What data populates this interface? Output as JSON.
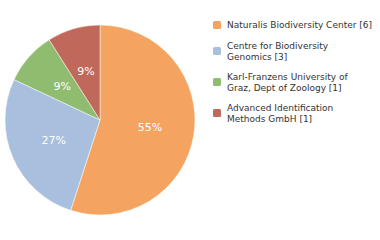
{
  "chart_data": {
    "type": "pie",
    "categories": [
      "Naturalis Biodiversity Center [6]",
      "Centre for Biodiversity\nGenomics [3]",
      "Karl-Franzens University of\nGraz, Dept of Zoology [1]",
      "Advanced Identification\nMethods GmbH [1]"
    ],
    "values": [
      55,
      27,
      9,
      9
    ],
    "value_labels": [
      "55%",
      "27%",
      "9%",
      "9%"
    ],
    "colors": [
      "#f4a460",
      "#a8c0dd",
      "#8fbc6f",
      "#c0685a"
    ],
    "data_labels": true,
    "legend": "upper right"
  }
}
